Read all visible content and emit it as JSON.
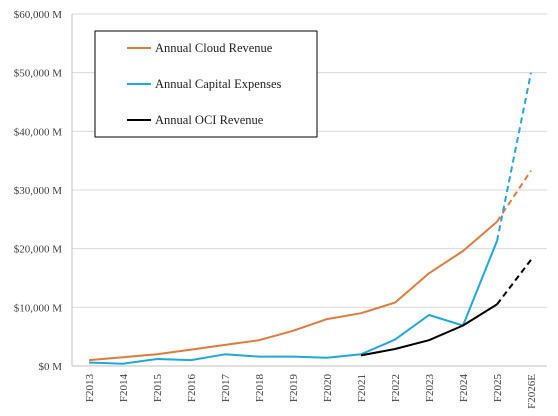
{
  "chart_data": {
    "type": "line",
    "categories": [
      "F2013",
      "F2014",
      "F2015",
      "F2016",
      "F2017",
      "F2018",
      "F2019",
      "F2020",
      "F2021",
      "F2022",
      "F2023",
      "F2024",
      "F2025",
      "F2026E"
    ],
    "y_ticks": [
      "$0 M",
      "$10,000 M",
      "$20,000 M",
      "$30,000 M",
      "$40,000 M",
      "$50,000 M",
      "$60,000 M"
    ],
    "ylim": [
      0,
      60000
    ],
    "grid": true,
    "legend_position": "top-left",
    "projected_from_category": "F2025",
    "series": [
      {
        "name": "Annual Cloud Revenue",
        "color": "#E07B3B",
        "values": [
          1000,
          1500,
          2000,
          2800,
          3600,
          4400,
          6000,
          8000,
          9000,
          10800,
          15800,
          19600,
          24600,
          33300
        ]
      },
      {
        "name": "Annual Capital Expenses",
        "color": "#1EA8DB",
        "values": [
          600,
          400,
          1200,
          1000,
          2000,
          1600,
          1600,
          1400,
          2000,
          4500,
          8700,
          6900,
          21300,
          50000
        ]
      },
      {
        "name": "Annual OCI Revenue",
        "color": "#000000",
        "values": [
          null,
          null,
          null,
          null,
          null,
          null,
          null,
          null,
          1800,
          2900,
          4400,
          6900,
          10500,
          18100
        ]
      }
    ]
  }
}
